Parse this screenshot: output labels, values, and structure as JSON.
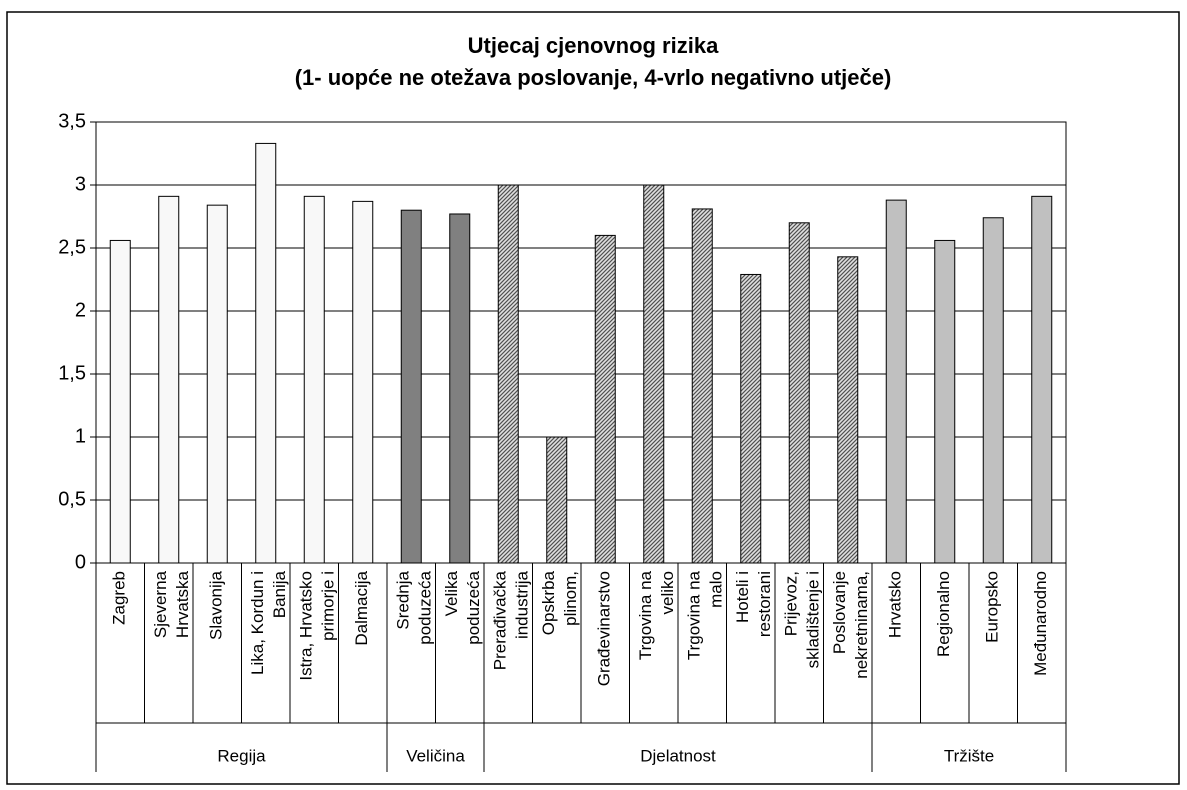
{
  "chart_data": {
    "type": "bar",
    "title": [
      "Utjecaj cjenovnog rizika",
      "(1- uopće ne otežava poslovanje, 4-vrlo negativno utječe)"
    ],
    "categories": [
      [
        "Zagreb"
      ],
      [
        "Sjeverna",
        "Hrvatska"
      ],
      [
        "Slavonija"
      ],
      [
        "Lika, Kordun i",
        "Banija"
      ],
      [
        "Istra, Hrvatsko",
        "primorje i"
      ],
      [
        "Dalmacija"
      ],
      [
        "Srednja",
        "poduzeća"
      ],
      [
        "Velika",
        "poduzeća"
      ],
      [
        "Prerađivačka",
        "industrija"
      ],
      [
        "Opskrba",
        "plinom,"
      ],
      [
        "Građevinarstvo"
      ],
      [
        "Trgovina na",
        "veliko"
      ],
      [
        "Trgovina na",
        "malo"
      ],
      [
        "Hoteli i",
        "restorani"
      ],
      [
        "Prijevoz,",
        "skladištenje i"
      ],
      [
        "Poslovanje",
        "nekretninama,"
      ],
      [
        "Hrvatsko"
      ],
      [
        "Regionalno"
      ],
      [
        "Europsko"
      ],
      [
        "Međunarodno"
      ]
    ],
    "series": [
      {
        "name": "Regija",
        "color": "#f8f8f8",
        "values": [
          2.56,
          2.91,
          2.84,
          3.33,
          2.91,
          2.87,
          null,
          null,
          null,
          null,
          null,
          null,
          null,
          null,
          null,
          null,
          null,
          null,
          null,
          null
        ]
      },
      {
        "name": "Veličina",
        "color": "#808080",
        "values": [
          null,
          null,
          null,
          null,
          null,
          null,
          2.8,
          2.77,
          null,
          null,
          null,
          null,
          null,
          null,
          null,
          null,
          null,
          null,
          null,
          null
        ]
      },
      {
        "name": "Djelatnost",
        "color": "#a8a8a8",
        "hatch": true,
        "values": [
          null,
          null,
          null,
          null,
          null,
          null,
          null,
          null,
          3.0,
          1.0,
          2.6,
          3.0,
          2.81,
          2.29,
          2.7,
          2.43,
          null,
          null,
          null,
          null
        ]
      },
      {
        "name": "Tržište",
        "color": "#c0c0c0",
        "values": [
          null,
          null,
          null,
          null,
          null,
          null,
          null,
          null,
          null,
          null,
          null,
          null,
          null,
          null,
          null,
          null,
          2.88,
          2.56,
          2.74,
          2.91
        ]
      }
    ],
    "ylim": [
      0,
      3.5
    ],
    "yticks": [
      0,
      {
        "value": 0.5,
        "label": "0,5"
      },
      1,
      {
        "value": 1.5,
        "label": "1,5"
      },
      2,
      {
        "value": 2.5,
        "label": "2,5"
      },
      3,
      {
        "value": 3.5,
        "label": "3,5"
      }
    ],
    "grid": true
  }
}
